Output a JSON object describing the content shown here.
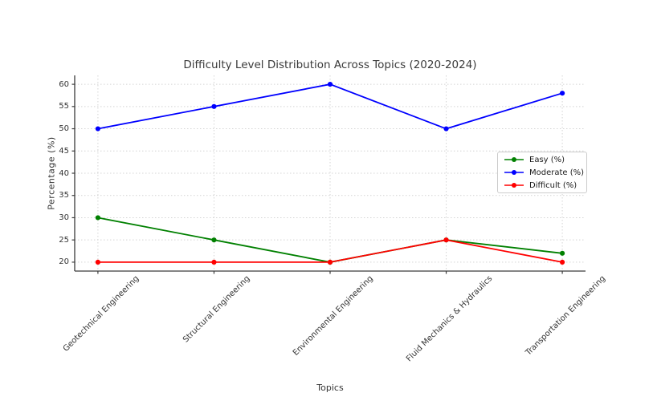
{
  "chart_data": {
    "type": "line",
    "title": "Difficulty Level Distribution Across Topics (2020-2024)",
    "xlabel": "Topics",
    "ylabel": "Percentage (%)",
    "categories": [
      "Geotechnical Engineering",
      "Structural Engineering",
      "Environmental Engineering",
      "Fluid Mechanics & Hydraulics",
      "Transportation Engineering"
    ],
    "series": [
      {
        "name": "Easy (%)",
        "color": "#008000",
        "values": [
          30,
          25,
          20,
          25,
          22
        ]
      },
      {
        "name": "Moderate (%)",
        "color": "#0000ff",
        "values": [
          50,
          55,
          60,
          50,
          58
        ]
      },
      {
        "name": "Difficult (%)",
        "color": "#ff0000",
        "values": [
          20,
          20,
          20,
          25,
          20
        ]
      }
    ],
    "yticks": [
      20,
      25,
      30,
      35,
      40,
      45,
      50,
      55,
      60
    ],
    "ylim": [
      18,
      62
    ],
    "x_tick_rotation": 45,
    "grid": true,
    "grid_style": "dotted",
    "legend_position": "center right",
    "marker": "circle"
  }
}
